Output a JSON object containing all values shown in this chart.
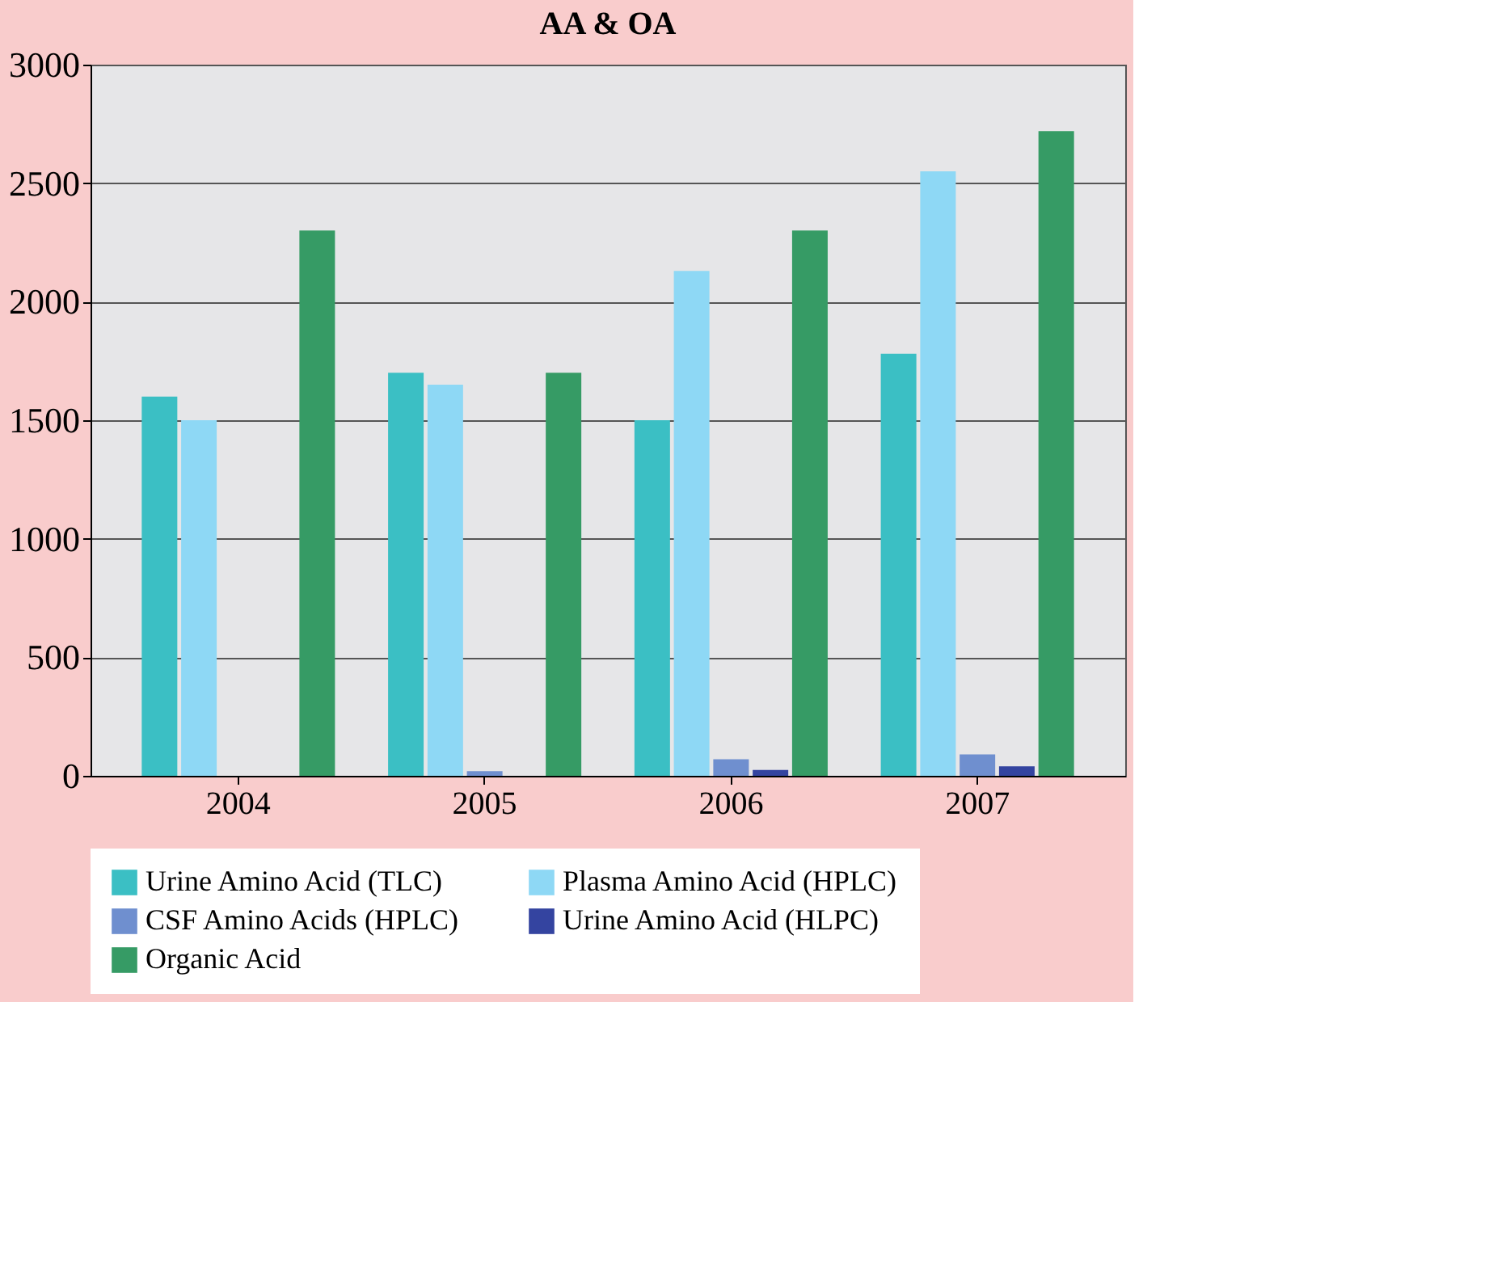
{
  "chart_data": {
    "type": "bar",
    "title": "AA & OA",
    "categories": [
      "2004",
      "2005",
      "2006",
      "2007"
    ],
    "series": [
      {
        "name": "Urine Amino Acid (TLC)",
        "color": "#3bbfc4",
        "values": [
          1600,
          1700,
          1500,
          1780
        ]
      },
      {
        "name": "Plasma Amino Acid (HPLC)",
        "color": "#8ed8f5",
        "values": [
          1500,
          1650,
          2130,
          2550
        ]
      },
      {
        "name": "CSF Amino Acids (HPLC)",
        "color": "#6f8fcf",
        "values": [
          null,
          20,
          70,
          90
        ]
      },
      {
        "name": "Urine Amino Acid (HLPC)",
        "color": "#3444a0",
        "values": [
          null,
          null,
          25,
          40
        ]
      },
      {
        "name": "Organic Acid",
        "color": "#369b65",
        "values": [
          2300,
          1700,
          2300,
          2720
        ]
      }
    ],
    "ylim": [
      0,
      3000
    ],
    "yticks": [
      0,
      500,
      1000,
      1500,
      2000,
      2500,
      3000
    ],
    "grid": "y",
    "legend": "bottom"
  }
}
